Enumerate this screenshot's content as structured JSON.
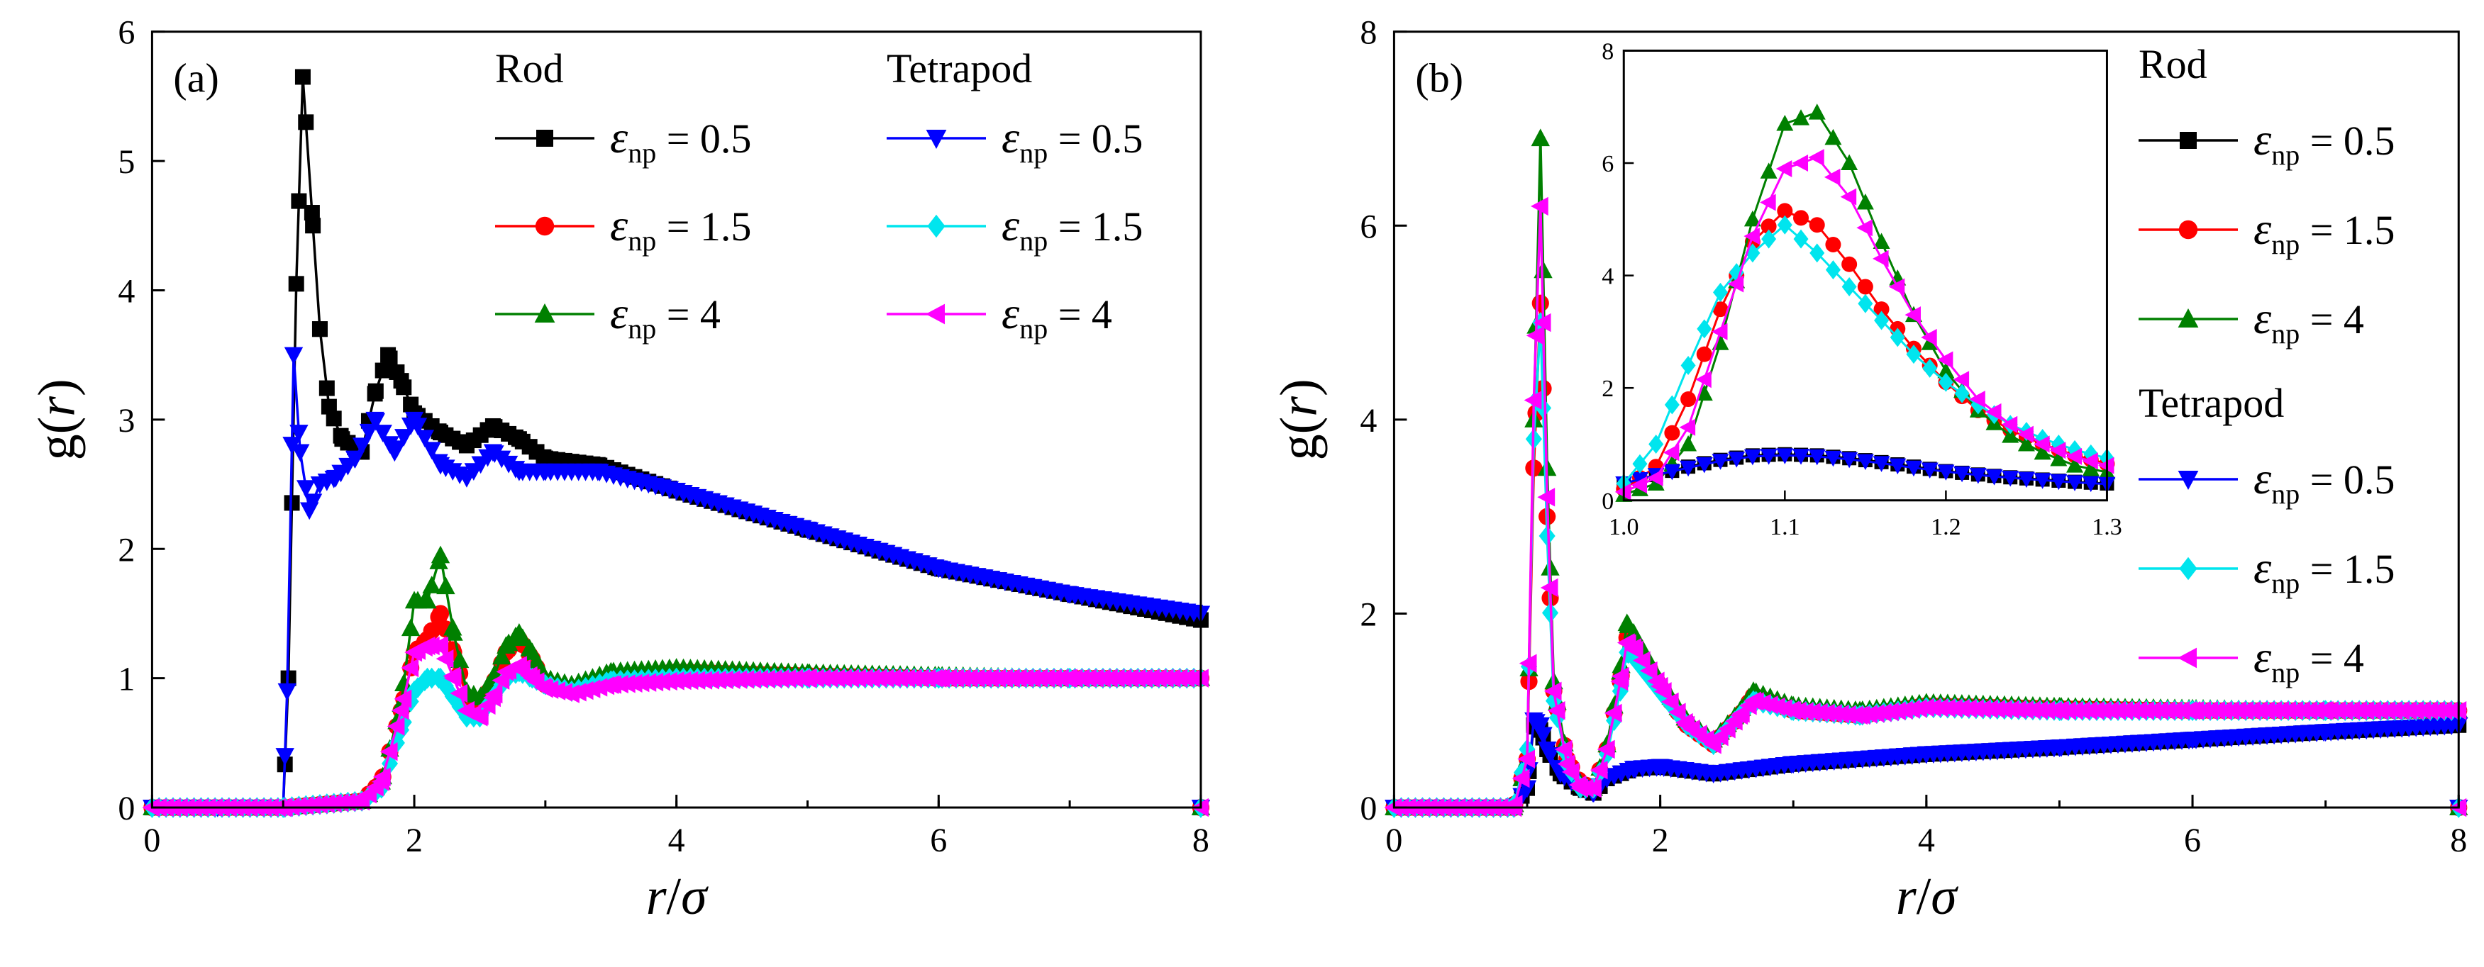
{
  "chart_data": [
    {
      "type": "line",
      "panel_label": "(a)",
      "xlabel": "r/σ",
      "ylabel": "g(r)",
      "xlim": [
        0,
        8
      ],
      "ylim": [
        0,
        6
      ],
      "xticks": [
        "0",
        "2",
        "4",
        "6",
        "8"
      ],
      "yticks": [
        "0",
        "1",
        "2",
        "3",
        "4",
        "5",
        "6"
      ],
      "legend_placement": "top-right",
      "legend_groups": [
        "Rod",
        "Tetrapod"
      ],
      "series": [
        {
          "name": "ε_np = 0.5",
          "group": "Rod",
          "color": "#000000",
          "marker": "square",
          "x": [
            0,
            0.5,
            1.0,
            1.04,
            1.1,
            1.15,
            1.22,
            1.28,
            1.35,
            1.45,
            1.6,
            1.7,
            1.8,
            1.9,
            2.0,
            2.2,
            2.4,
            2.6,
            2.8,
            3.0,
            3.4,
            4.0,
            5.0,
            6.0,
            7.0,
            8.0
          ],
          "y": [
            0,
            0,
            0,
            1.0,
            4.05,
            5.65,
            4.6,
            3.7,
            3.1,
            2.85,
            2.75,
            3.2,
            3.5,
            3.3,
            3.05,
            2.9,
            2.8,
            2.95,
            2.85,
            2.7,
            2.65,
            2.45,
            2.15,
            1.85,
            1.65,
            1.45
          ]
        },
        {
          "name": "ε_np = 1.5",
          "group": "Rod",
          "color": "#ff0000",
          "marker": "circle",
          "x": [
            0,
            1.0,
            1.6,
            1.75,
            1.9,
            2.0,
            2.1,
            2.2,
            2.3,
            2.4,
            2.5,
            2.6,
            2.7,
            2.8,
            2.9,
            3.0,
            3.2,
            3.5,
            4.0,
            5.0,
            6.0,
            7.0,
            8.0
          ],
          "y": [
            0,
            0,
            0.05,
            0.2,
            0.75,
            1.2,
            1.3,
            1.5,
            1.2,
            0.85,
            0.8,
            0.95,
            1.2,
            1.3,
            1.15,
            0.95,
            0.9,
            1.0,
            1.05,
            1.02,
            1.0,
            1.0,
            1.0
          ]
        },
        {
          "name": "ε_np = 4",
          "group": "Rod",
          "color": "#008000",
          "marker": "triangle-up",
          "x": [
            0,
            1.0,
            1.6,
            1.75,
            1.9,
            2.0,
            2.1,
            2.2,
            2.3,
            2.4,
            2.5,
            2.6,
            2.7,
            2.8,
            2.9,
            3.0,
            3.2,
            3.5,
            4.0,
            5.0,
            6.0,
            7.0,
            8.0
          ],
          "y": [
            0,
            0,
            0.05,
            0.2,
            0.8,
            1.6,
            1.6,
            1.95,
            1.35,
            0.9,
            0.85,
            1.0,
            1.25,
            1.35,
            1.2,
            1.0,
            0.95,
            1.05,
            1.08,
            1.04,
            1.02,
            1.0,
            1.0
          ]
        },
        {
          "name": "ε_np = 0.5",
          "group": "Tetrapod",
          "color": "#0000ff",
          "marker": "triangle-down",
          "x": [
            0,
            0.5,
            1.0,
            1.03,
            1.08,
            1.13,
            1.2,
            1.28,
            1.4,
            1.55,
            1.7,
            1.85,
            2.0,
            2.2,
            2.4,
            2.6,
            2.8,
            3.0,
            3.4,
            4.0,
            5.0,
            6.0,
            7.0,
            8.0
          ],
          "y": [
            0,
            0,
            0,
            0.9,
            3.5,
            2.75,
            2.3,
            2.5,
            2.55,
            2.7,
            3.0,
            2.75,
            3.0,
            2.65,
            2.55,
            2.75,
            2.6,
            2.6,
            2.6,
            2.45,
            2.15,
            1.85,
            1.65,
            1.5
          ]
        },
        {
          "name": "ε_np = 1.5",
          "group": "Tetrapod",
          "color": "#00e5ee",
          "marker": "diamond",
          "x": [
            0,
            1.0,
            1.6,
            1.75,
            1.9,
            2.0,
            2.1,
            2.2,
            2.3,
            2.4,
            2.5,
            2.6,
            2.7,
            2.8,
            2.9,
            3.0,
            3.2,
            3.5,
            4.0,
            5.0,
            6.0,
            7.0,
            8.0
          ],
          "y": [
            0,
            0,
            0.05,
            0.15,
            0.6,
            0.9,
            1.0,
            1.0,
            0.85,
            0.7,
            0.7,
            0.85,
            1.0,
            1.05,
            1.0,
            0.95,
            0.9,
            0.98,
            1.0,
            1.0,
            1.0,
            1.0,
            1.0
          ]
        },
        {
          "name": "ε_np = 4",
          "group": "Tetrapod",
          "color": "#ff00ff",
          "marker": "triangle-left",
          "x": [
            0,
            1.0,
            1.6,
            1.75,
            1.9,
            2.0,
            2.1,
            2.2,
            2.3,
            2.4,
            2.5,
            2.6,
            2.7,
            2.8,
            2.9,
            3.0,
            3.2,
            3.5,
            4.0,
            5.0,
            6.0,
            7.0,
            8.0
          ],
          "y": [
            0,
            0,
            0.05,
            0.2,
            0.75,
            1.2,
            1.25,
            1.25,
            1.0,
            0.75,
            0.7,
            0.85,
            1.05,
            1.1,
            1.0,
            0.92,
            0.88,
            0.95,
            0.98,
            1.0,
            1.0,
            1.0,
            1.0
          ]
        }
      ]
    },
    {
      "type": "line",
      "panel_label": "(b)",
      "xlabel": "r/σ",
      "ylabel": "g(r)",
      "xlim": [
        0,
        8
      ],
      "ylim": [
        0,
        8
      ],
      "xticks": [
        "0",
        "2",
        "4",
        "6",
        "8"
      ],
      "yticks": [
        "0",
        "2",
        "4",
        "6",
        "8"
      ],
      "legend_placement": "right",
      "legend_groups": [
        "Rod",
        "Tetrapod"
      ],
      "series": [
        {
          "name": "ε_np = 0.5",
          "group": "Rod",
          "color": "#000000",
          "marker": "square",
          "x": [
            0,
            0.9,
            1.0,
            1.05,
            1.1,
            1.15,
            1.25,
            1.4,
            1.5,
            1.6,
            1.8,
            2.0,
            2.4,
            3.0,
            4.0,
            5.0,
            6.0,
            7.0,
            8.0
          ],
          "y": [
            0,
            0,
            0.2,
            0.85,
            0.8,
            0.6,
            0.35,
            0.2,
            0.15,
            0.3,
            0.4,
            0.42,
            0.35,
            0.45,
            0.55,
            0.62,
            0.7,
            0.78,
            0.85
          ]
        },
        {
          "name": "ε_np = 1.5",
          "group": "Rod",
          "color": "#ff0000",
          "marker": "circle",
          "x": [
            0,
            0.9,
            1.0,
            1.05,
            1.1,
            1.15,
            1.2,
            1.3,
            1.4,
            1.5,
            1.6,
            1.7,
            1.75,
            1.8,
            2.0,
            2.2,
            2.4,
            2.6,
            2.7,
            3.0,
            3.5,
            4.0,
            5.0,
            6.0,
            7.0,
            8.0
          ],
          "y": [
            0,
            0,
            0.5,
            3.5,
            5.2,
            3.0,
            1.2,
            0.5,
            0.25,
            0.2,
            0.6,
            1.3,
            1.75,
            1.7,
            1.25,
            0.85,
            0.65,
            0.95,
            1.15,
            1.0,
            0.95,
            1.05,
            1.02,
            1.0,
            1.0,
            1.0
          ]
        },
        {
          "name": "ε_np = 4",
          "group": "Rod",
          "color": "#008000",
          "marker": "triangle-up",
          "x": [
            0,
            0.9,
            1.0,
            1.05,
            1.1,
            1.15,
            1.2,
            1.3,
            1.4,
            1.5,
            1.6,
            1.7,
            1.75,
            1.8,
            2.0,
            2.2,
            2.4,
            2.6,
            2.7,
            3.0,
            3.5,
            4.0,
            5.0,
            6.0,
            7.0,
            8.0
          ],
          "y": [
            0,
            0,
            0.5,
            4.0,
            6.9,
            3.5,
            1.3,
            0.5,
            0.25,
            0.2,
            0.65,
            1.4,
            1.9,
            1.8,
            1.3,
            0.9,
            0.7,
            1.0,
            1.2,
            1.05,
            1.0,
            1.08,
            1.04,
            1.02,
            1.0,
            1.0
          ]
        },
        {
          "name": "ε_np = 0.5",
          "group": "Tetrapod",
          "color": "#0000ff",
          "marker": "triangle-down",
          "x": [
            0,
            0.9,
            1.0,
            1.05,
            1.1,
            1.15,
            1.25,
            1.4,
            1.5,
            1.6,
            1.8,
            2.0,
            2.4,
            3.0,
            4.0,
            5.0,
            6.0,
            7.0,
            8.0
          ],
          "y": [
            0,
            0,
            0.2,
            0.9,
            0.85,
            0.6,
            0.35,
            0.2,
            0.15,
            0.3,
            0.4,
            0.42,
            0.35,
            0.45,
            0.55,
            0.62,
            0.7,
            0.78,
            0.85
          ]
        },
        {
          "name": "ε_np = 1.5",
          "group": "Tetrapod",
          "color": "#00e5ee",
          "marker": "diamond",
          "x": [
            0,
            0.9,
            1.0,
            1.05,
            1.1,
            1.15,
            1.2,
            1.3,
            1.4,
            1.5,
            1.6,
            1.7,
            1.75,
            1.8,
            2.0,
            2.2,
            2.4,
            2.6,
            2.7,
            3.0,
            3.5,
            4.0,
            5.0,
            6.0,
            7.0,
            8.0
          ],
          "y": [
            0,
            0,
            0.6,
            3.8,
            5.0,
            2.8,
            1.1,
            0.45,
            0.2,
            0.2,
            0.55,
            1.2,
            1.6,
            1.55,
            1.2,
            0.85,
            0.65,
            0.95,
            1.1,
            1.0,
            0.95,
            1.03,
            1.0,
            1.0,
            1.0,
            1.0
          ]
        },
        {
          "name": "ε_np = 4",
          "group": "Tetrapod",
          "color": "#ff00ff",
          "marker": "triangle-left",
          "x": [
            0,
            0.9,
            1.0,
            1.05,
            1.1,
            1.15,
            1.2,
            1.3,
            1.4,
            1.5,
            1.6,
            1.7,
            1.75,
            1.8,
            2.0,
            2.2,
            2.4,
            2.6,
            2.7,
            3.0,
            3.5,
            4.0,
            5.0,
            6.0,
            7.0,
            8.0
          ],
          "y": [
            0,
            0,
            0.5,
            4.2,
            6.2,
            3.2,
            1.2,
            0.45,
            0.2,
            0.2,
            0.6,
            1.3,
            1.7,
            1.65,
            1.25,
            0.85,
            0.65,
            0.95,
            1.1,
            1.0,
            0.95,
            1.03,
            1.0,
            1.0,
            1.0,
            1.0
          ]
        }
      ],
      "inset": {
        "xlim": [
          1.0,
          1.3
        ],
        "ylim": [
          0,
          8
        ],
        "xticks": [
          "1.0",
          "1.1",
          "1.2",
          "1.3"
        ],
        "yticks": [
          "0",
          "2",
          "4",
          "6",
          "8"
        ],
        "series": [
          {
            "name": "Rod ε_np = 0.5",
            "color": "#000000",
            "marker": "square",
            "x": [
              1.0,
              1.02,
              1.04,
              1.06,
              1.08,
              1.1,
              1.12,
              1.14,
              1.16,
              1.18,
              1.2,
              1.22,
              1.24,
              1.26,
              1.28,
              1.3
            ],
            "y": [
              0.3,
              0.45,
              0.6,
              0.72,
              0.8,
              0.82,
              0.8,
              0.75,
              0.68,
              0.6,
              0.52,
              0.46,
              0.41,
              0.37,
              0.33,
              0.3
            ]
          },
          {
            "name": "Rod ε_np = 1.5",
            "color": "#ff0000",
            "marker": "circle",
            "x": [
              1.0,
              1.02,
              1.04,
              1.06,
              1.08,
              1.1,
              1.12,
              1.14,
              1.16,
              1.18,
              1.2,
              1.22,
              1.24,
              1.26,
              1.28,
              1.3
            ],
            "y": [
              0.2,
              0.6,
              1.8,
              3.4,
              4.6,
              5.15,
              4.9,
              4.2,
              3.4,
              2.7,
              2.1,
              1.6,
              1.25,
              1.0,
              0.8,
              0.65
            ]
          },
          {
            "name": "Rod ε_np = 4",
            "color": "#008000",
            "marker": "triangle-up",
            "x": [
              1.0,
              1.02,
              1.04,
              1.06,
              1.08,
              1.1,
              1.12,
              1.14,
              1.16,
              1.18,
              1.2,
              1.22,
              1.24,
              1.26,
              1.28,
              1.3
            ],
            "y": [
              0.1,
              0.3,
              1.0,
              2.8,
              5.0,
              6.7,
              6.9,
              6.0,
              4.6,
              3.3,
              2.3,
              1.6,
              1.15,
              0.85,
              0.62,
              0.5
            ]
          },
          {
            "name": "Tetrapod ε_np = 0.5",
            "color": "#0000ff",
            "marker": "triangle-down",
            "x": [
              1.0,
              1.02,
              1.04,
              1.06,
              1.08,
              1.1,
              1.12,
              1.14,
              1.16,
              1.18,
              1.2,
              1.22,
              1.24,
              1.26,
              1.28,
              1.3
            ],
            "y": [
              0.3,
              0.45,
              0.58,
              0.7,
              0.78,
              0.8,
              0.78,
              0.73,
              0.66,
              0.58,
              0.51,
              0.45,
              0.4,
              0.36,
              0.32,
              0.29
            ]
          },
          {
            "name": "Tetrapod ε_np = 1.5",
            "color": "#00e5ee",
            "marker": "diamond",
            "x": [
              1.0,
              1.02,
              1.04,
              1.06,
              1.08,
              1.1,
              1.12,
              1.14,
              1.16,
              1.18,
              1.2,
              1.22,
              1.24,
              1.26,
              1.28,
              1.3
            ],
            "y": [
              0.3,
              1.0,
              2.4,
              3.7,
              4.4,
              4.9,
              4.4,
              3.8,
              3.2,
              2.6,
              2.1,
              1.7,
              1.35,
              1.1,
              0.9,
              0.75
            ]
          },
          {
            "name": "Tetrapod ε_np = 4",
            "color": "#ff00ff",
            "marker": "triangle-left",
            "x": [
              1.0,
              1.02,
              1.04,
              1.06,
              1.08,
              1.1,
              1.12,
              1.14,
              1.16,
              1.18,
              1.2,
              1.22,
              1.24,
              1.26,
              1.28,
              1.3
            ],
            "y": [
              0.15,
              0.4,
              1.3,
              3.0,
              4.7,
              5.9,
              6.1,
              5.4,
              4.3,
              3.3,
              2.5,
              1.8,
              1.35,
              1.0,
              0.78,
              0.62
            ]
          }
        ]
      }
    }
  ]
}
